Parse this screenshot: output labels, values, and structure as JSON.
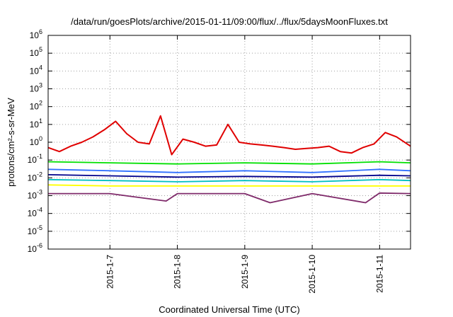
{
  "chart_data": {
    "type": "line",
    "title": "/data/run/goesPlots/archive/2015-01-11/09:00/flux/../flux/5daysMoonFluxes.txt",
    "xlabel": "Coordinated Universal Time (UTC)",
    "ylabel": "protons/cm²-s-sr-MeV",
    "yscale": "log",
    "ylim": [
      -6,
      6
    ],
    "yticks": [
      {
        "exp": 6,
        "label": "6"
      },
      {
        "exp": 5,
        "label": "5"
      },
      {
        "exp": 4,
        "label": "4"
      },
      {
        "exp": 3,
        "label": "3"
      },
      {
        "exp": 2,
        "label": "2"
      },
      {
        "exp": 1,
        "label": "1"
      },
      {
        "exp": 0,
        "label": "0"
      },
      {
        "exp": -1,
        "label": "-1"
      },
      {
        "exp": -2,
        "label": "-2"
      },
      {
        "exp": -3,
        "label": "-3"
      },
      {
        "exp": -4,
        "label": "-4"
      },
      {
        "exp": -5,
        "label": "-5"
      },
      {
        "exp": -6,
        "label": "-6"
      }
    ],
    "ytick_base": "10",
    "xlim": [
      "2015-01-06 02:00",
      "2015-01-11 11:00"
    ],
    "xticks": [
      {
        "x": "2015-01-07 00:00",
        "label": "2015-1-7"
      },
      {
        "x": "2015-01-08 00:00",
        "label": "2015-1-8"
      },
      {
        "x": "2015-01-09 00:00",
        "label": "2015-1-9"
      },
      {
        "x": "2015-01-10 00:00",
        "label": "2015-1-10"
      },
      {
        "x": "2015-01-11 00:00",
        "label": "2015-1-11"
      }
    ],
    "grid": true,
    "series": [
      {
        "color": "#e00000",
        "x": [
          "2015-01-06 02:00",
          "2015-01-06 06:00",
          "2015-01-06 10:00",
          "2015-01-06 14:00",
          "2015-01-06 18:00",
          "2015-01-06 22:00",
          "2015-01-07 02:00",
          "2015-01-07 06:00",
          "2015-01-07 10:00",
          "2015-01-07 14:00",
          "2015-01-07 18:00",
          "2015-01-07 22:00",
          "2015-01-08 02:00",
          "2015-01-08 06:00",
          "2015-01-08 10:00",
          "2015-01-08 14:00",
          "2015-01-08 18:00",
          "2015-01-08 22:00",
          "2015-01-09 02:00",
          "2015-01-09 06:00",
          "2015-01-09 10:00",
          "2015-01-09 14:00",
          "2015-01-09 18:00",
          "2015-01-09 22:00",
          "2015-01-10 02:00",
          "2015-01-10 06:00",
          "2015-01-10 10:00",
          "2015-01-10 14:00",
          "2015-01-10 18:00",
          "2015-01-10 22:00",
          "2015-01-11 02:00",
          "2015-01-11 06:00",
          "2015-01-11 11:00"
        ],
        "y": [
          0.5,
          0.3,
          0.6,
          1.0,
          2.0,
          5.0,
          15,
          3.0,
          1.0,
          0.8,
          30,
          0.2,
          1.5,
          1.0,
          0.6,
          0.7,
          10,
          1.0,
          0.8,
          0.7,
          0.6,
          0.5,
          0.4,
          0.45,
          0.5,
          0.6,
          0.3,
          0.25,
          0.5,
          0.8,
          3.5,
          2.0,
          0.6
        ]
      },
      {
        "color": "#00e000",
        "x": [
          "2015-01-06 02:00",
          "2015-01-07 00:00",
          "2015-01-08 00:00",
          "2015-01-09 00:00",
          "2015-01-10 00:00",
          "2015-01-11 00:00",
          "2015-01-11 11:00"
        ],
        "y": [
          0.08,
          0.07,
          0.06,
          0.07,
          0.06,
          0.08,
          0.07
        ]
      },
      {
        "color": "#3070ff",
        "x": [
          "2015-01-06 02:00",
          "2015-01-07 00:00",
          "2015-01-08 00:00",
          "2015-01-09 00:00",
          "2015-01-10 00:00",
          "2015-01-11 00:00",
          "2015-01-11 11:00"
        ],
        "y": [
          0.03,
          0.025,
          0.02,
          0.025,
          0.02,
          0.03,
          0.025
        ]
      },
      {
        "color": "#00008b",
        "x": [
          "2015-01-06 02:00",
          "2015-01-07 00:00",
          "2015-01-08 00:00",
          "2015-01-09 00:00",
          "2015-01-10 00:00",
          "2015-01-11 00:00",
          "2015-01-11 11:00"
        ],
        "y": [
          0.015,
          0.013,
          0.011,
          0.012,
          0.011,
          0.014,
          0.013
        ]
      },
      {
        "color": "#00c0c0",
        "x": [
          "2015-01-06 02:00",
          "2015-01-07 00:00",
          "2015-01-08 00:00",
          "2015-01-09 00:00",
          "2015-01-10 00:00",
          "2015-01-11 00:00",
          "2015-01-11 11:00"
        ],
        "y": [
          0.008,
          0.007,
          0.006,
          0.007,
          0.006,
          0.008,
          0.007
        ]
      },
      {
        "color": "#ffff00",
        "x": [
          "2015-01-06 02:00",
          "2015-01-07 00:00",
          "2015-01-08 00:00",
          "2015-01-09 00:00",
          "2015-01-10 00:00",
          "2015-01-11 00:00",
          "2015-01-11 11:00"
        ],
        "y": [
          0.004,
          0.0035,
          0.0035,
          0.0035,
          0.0035,
          0.0035,
          0.0035
        ]
      },
      {
        "color": "#7f2a6a",
        "x": [
          "2015-01-06 02:00",
          "2015-01-07 00:00",
          "2015-01-07 20:00",
          "2015-01-08 00:00",
          "2015-01-09 00:00",
          "2015-01-09 09:00",
          "2015-01-10 00:00",
          "2015-01-10 19:00",
          "2015-01-11 00:00",
          "2015-01-11 11:00"
        ],
        "y": [
          0.0013,
          0.0013,
          0.0005,
          0.0013,
          0.0013,
          0.0004,
          0.0013,
          0.0004,
          0.0014,
          0.0013
        ]
      }
    ]
  }
}
